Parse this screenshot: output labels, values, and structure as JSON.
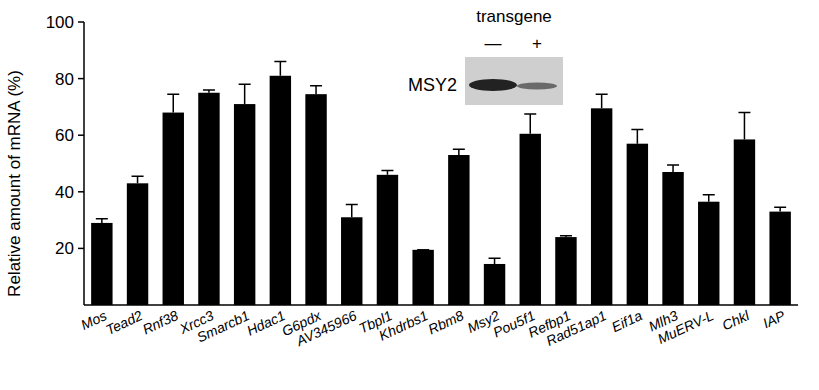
{
  "chart_data": {
    "type": "bar",
    "y_label": "Relative amount of mRNA (%)",
    "categories": [
      "Mos",
      "Tead2",
      "Rnf38",
      "Xrcc3",
      "Smarcb1",
      "Hdac1",
      "G6pdx",
      "AV345966",
      "Tbpl1",
      "Khdrbs1",
      "Rbm8",
      "Msy2",
      "Pou5f1",
      "Refbp1",
      "Rad51ap1",
      "Eif1a",
      "Mlh3",
      "MuERV-L",
      "Chkl",
      "IAP"
    ],
    "values": [
      29,
      43,
      68,
      75,
      71,
      81,
      74.5,
      31,
      46,
      19.5,
      53,
      14.5,
      60.5,
      24,
      69.5,
      57,
      47,
      36.5,
      58.5,
      33
    ],
    "errors": [
      1.5,
      2.5,
      6.5,
      1,
      7,
      5,
      3,
      4.5,
      1.5,
      0,
      2,
      2,
      7,
      0.5,
      5,
      5,
      2.5,
      2.5,
      9.5,
      1.5
    ],
    "color": "#000000",
    "ylim": [
      0,
      100
    ],
    "yticks": [
      20,
      40,
      60,
      80,
      100
    ],
    "grid": false,
    "annotations": [
      "transgene",
      "—",
      "+",
      "MSY2"
    ]
  }
}
